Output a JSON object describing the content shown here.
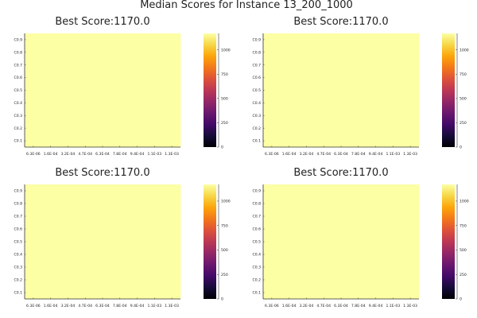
{
  "suptitle": "Median Scores for Instance 13_200_1000",
  "chart_data": [
    {
      "type": "heatmap",
      "title": "Best Score:1170.0",
      "x_ticks": [
        "6.3E-06",
        "1.6E-04",
        "3.2E-04",
        "4.7E-04",
        "6.3E-04",
        "7.8E-04",
        "9.4E-04",
        "1.1E-03",
        "1.3E-03"
      ],
      "y_ticks": [
        "C0.1",
        "C0.2",
        "C0.3",
        "C0.4",
        "C0.5",
        "C0.6",
        "C0.7",
        "C0.8",
        "C0.9"
      ],
      "cell_value": 1170.0,
      "colorbar": {
        "colormap": "inferno",
        "range": [
          0,
          1170
        ],
        "ticks": [
          0,
          250,
          500,
          750,
          1000
        ]
      }
    },
    {
      "type": "heatmap",
      "title": "Best Score:1170.0",
      "x_ticks": [
        "6.3E-06",
        "1.6E-04",
        "3.2E-04",
        "4.7E-04",
        "6.3E-04",
        "7.8E-04",
        "9.4E-04",
        "1.1E-03",
        "1.3E-03"
      ],
      "y_ticks": [
        "C0.1",
        "C0.2",
        "C0.3",
        "C0.4",
        "C0.5",
        "C0.6",
        "C0.7",
        "C0.8",
        "C0.9"
      ],
      "cell_value": 1170.0,
      "colorbar": {
        "colormap": "inferno",
        "range": [
          0,
          1170
        ],
        "ticks": [
          0,
          250,
          500,
          750,
          1000
        ]
      }
    },
    {
      "type": "heatmap",
      "title": "Best Score:1170.0",
      "x_ticks": [
        "6.3E-06",
        "1.6E-04",
        "3.2E-04",
        "4.7E-04",
        "6.3E-04",
        "7.8E-04",
        "9.4E-04",
        "1.1E-03",
        "1.3E-03"
      ],
      "y_ticks": [
        "C0.1",
        "C0.2",
        "C0.3",
        "C0.4",
        "C0.5",
        "C0.6",
        "C0.7",
        "C0.8",
        "C0.9"
      ],
      "cell_value": 1170.0,
      "colorbar": {
        "colormap": "inferno",
        "range": [
          0,
          1170
        ],
        "ticks": [
          0,
          250,
          500,
          750,
          1000
        ]
      }
    },
    {
      "type": "heatmap",
      "title": "Best Score:1170.0",
      "x_ticks": [
        "6.3E-06",
        "1.6E-04",
        "3.2E-04",
        "4.7E-04",
        "6.3E-04",
        "7.8E-04",
        "9.4E-04",
        "1.1E-03",
        "1.3E-03"
      ],
      "y_ticks": [
        "C0.1",
        "C0.2",
        "C0.3",
        "C0.4",
        "C0.5",
        "C0.6",
        "C0.7",
        "C0.8",
        "C0.9"
      ],
      "cell_value": 1170.0,
      "colorbar": {
        "colormap": "inferno",
        "range": [
          0,
          1170
        ],
        "ticks": [
          0,
          250,
          500,
          750,
          1000
        ]
      }
    }
  ]
}
